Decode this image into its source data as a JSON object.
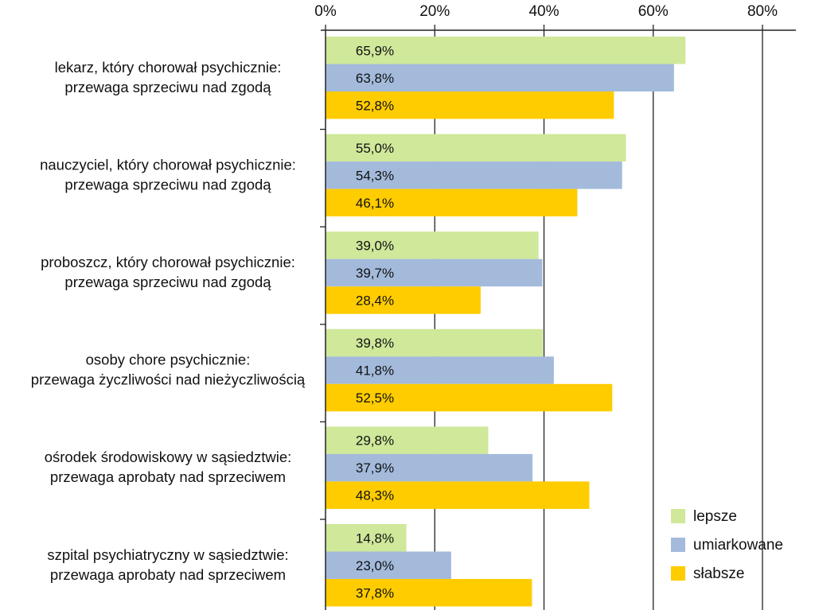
{
  "chart_data": {
    "type": "bar",
    "orientation": "horizontal",
    "title": "",
    "xlabel": "",
    "ylabel": "",
    "xlim": [
      0,
      80
    ],
    "x_ticks": [
      "0%",
      "20%",
      "40%",
      "60%",
      "80%"
    ],
    "x_axis_position": "top",
    "grid": true,
    "legend_position": "bottom-right",
    "categories": [
      [
        "lekarz, który chorował psychicznie:",
        "przewaga sprzeciwu nad zgodą"
      ],
      [
        "nauczyciel, który chorował psychicznie:",
        "przewaga sprzeciwu nad zgodą"
      ],
      [
        "proboszcz, który chorował psychicznie:",
        "przewaga sprzeciwu nad zgodą"
      ],
      [
        "osoby chore psychicznie:",
        "przewaga życzliwości nad nieżyczliwością"
      ],
      [
        "ośrodek środowiskowy w sąsiedztwie:",
        "przewaga aprobaty nad sprzeciwem"
      ],
      [
        "szpital psychiatryczny w sąsiedztwie:",
        "przewaga aprobaty nad sprzeciwem"
      ]
    ],
    "series": [
      {
        "name": "lepsze",
        "color": "#cfe89a",
        "values": [
          65.9,
          55.0,
          39.0,
          39.8,
          29.8,
          14.8
        ],
        "labels": [
          "65,9%",
          "55,0%",
          "39,0%",
          "39,8%",
          "29,8%",
          "14,8%"
        ]
      },
      {
        "name": "umiarkowane",
        "color": "#a3badb",
        "values": [
          63.8,
          54.3,
          39.7,
          41.8,
          37.9,
          23.0
        ],
        "labels": [
          "63,8%",
          "54,3%",
          "39,7%",
          "41,8%",
          "37,9%",
          "23,0%"
        ]
      },
      {
        "name": "słabsze",
        "color": "#ffcc00",
        "values": [
          52.8,
          46.1,
          28.4,
          52.5,
          48.3,
          37.8
        ],
        "labels": [
          "52,8%",
          "46,1%",
          "28,4%",
          "52,5%",
          "48,3%",
          "37,8%"
        ]
      }
    ]
  }
}
